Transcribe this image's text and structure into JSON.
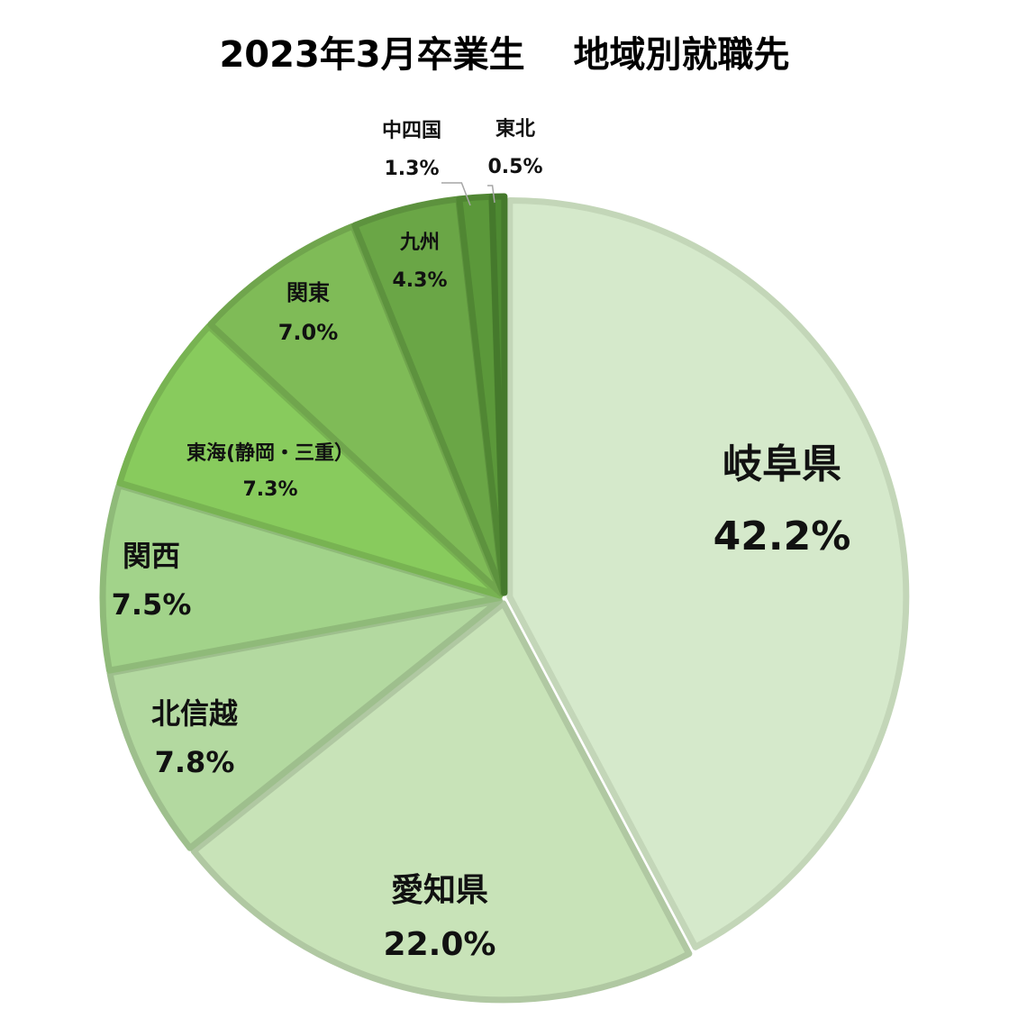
{
  "chart_data": {
    "type": "pie",
    "title": "2023年3月卒業生　 地域別就職先",
    "categories": [
      "岐阜県",
      "愛知県",
      "北信越",
      "関西",
      "東海(静岡・三重）",
      "関東",
      "九州",
      "中四国",
      "東北"
    ],
    "values": [
      42.2,
      22.0,
      7.8,
      7.5,
      7.3,
      7.0,
      4.3,
      1.3,
      0.5
    ],
    "value_labels": [
      "42.2%",
      "22.0%",
      "7.8%",
      "7.5%",
      "7.3%",
      "7.0%",
      "4.3%",
      "1.3%",
      "0.5%"
    ],
    "colors": [
      "#d5e9cb",
      "#c8e3b8",
      "#b3d9a0",
      "#a2d38a",
      "#88cb5d",
      "#7fbb57",
      "#6aa646",
      "#5b983a",
      "#4e8a32"
    ],
    "legend": "none"
  }
}
